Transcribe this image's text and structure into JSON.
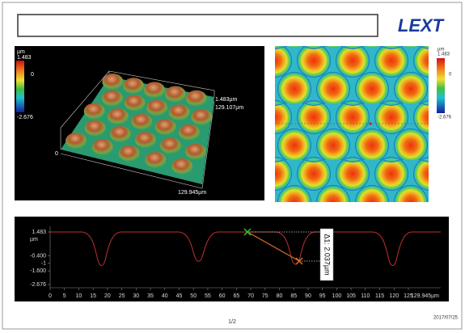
{
  "logo": "LEXT",
  "view_3d": {
    "unit": "µm",
    "scale_max": "1.483",
    "scale_zero": "0",
    "scale_min": "-2.676",
    "height": "1.483µm",
    "y_size": "129.107µm",
    "origin": "0",
    "x_size": "129.945µm"
  },
  "height_map": {
    "unit": "µm",
    "scale_max": "1.483",
    "scale_zero": "0",
    "scale_min": "-2.676"
  },
  "profile": {
    "y_unit": "µm",
    "yticks": [
      1.483,
      {
        "value": -0.4,
        "label": "-0.400"
      },
      -1,
      {
        "value": -1.6,
        "label": "-1.600"
      },
      -2.676
    ],
    "xticks": [
      0,
      5,
      10,
      15,
      20,
      25,
      30,
      35,
      40,
      45,
      50,
      55,
      60,
      65,
      70,
      75,
      80,
      85,
      90,
      95,
      100,
      105,
      110,
      115,
      120,
      125
    ],
    "x_end": "129.945µm",
    "measurement": "Δ1: 2.037µm"
  },
  "footer": {
    "page": "1/2",
    "date": "2017/07/25"
  }
}
